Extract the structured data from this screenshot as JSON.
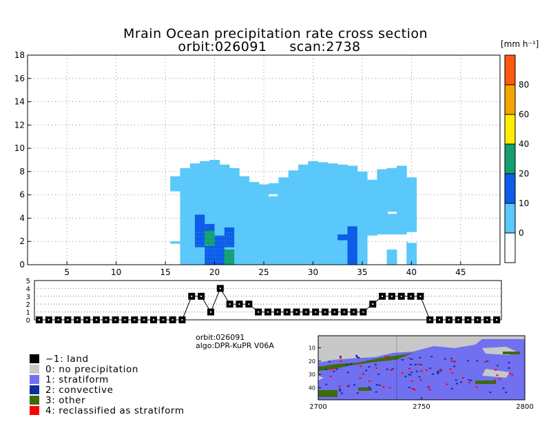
{
  "chart_data": [
    {
      "type": "heatmap",
      "title": "Mrain Ocean precipitation rate cross section",
      "subtitle_orbit": "orbit:026091",
      "subtitle_scan": "scan:2738",
      "colorbar_unit": "[mm h⁻¹]",
      "xlim": [
        1,
        49
      ],
      "ylim": [
        0,
        18
      ],
      "x_ticks": [
        5,
        10,
        15,
        20,
        25,
        30,
        35,
        40,
        45
      ],
      "y_ticks": [
        0,
        2,
        4,
        6,
        8,
        10,
        12,
        14,
        16,
        18
      ],
      "grid": true,
      "color_levels": [
        {
          "label": "0",
          "color": "#5ac8fa"
        },
        {
          "label": "10",
          "color": "#0e5de8"
        },
        {
          "label": "20",
          "color": "#12a070"
        },
        {
          "label": "40",
          "color": "#ffee00"
        },
        {
          "label": "60",
          "color": "#f5a500"
        },
        {
          "label": "80",
          "color": "#ff5a10"
        }
      ],
      "colorbar_bottom_color": "#ffffff",
      "no_rain_color": "#ffffff",
      "rain_columns": [
        {
          "x": 16,
          "bottom": 1.8,
          "top": 2.0
        },
        {
          "x": 16,
          "bottom": 6.3,
          "top": 7.6
        },
        {
          "x": 17,
          "bottom": 0.0,
          "top": 8.3
        },
        {
          "x": 18,
          "bottom": 0.0,
          "top": 8.7
        },
        {
          "x": 19,
          "bottom": 0.0,
          "top": 8.9
        },
        {
          "x": 20,
          "bottom": 0.0,
          "top": 9.0
        },
        {
          "x": 21,
          "bottom": 0.0,
          "top": 8.6
        },
        {
          "x": 22,
          "bottom": 0.0,
          "top": 8.3
        },
        {
          "x": 23,
          "bottom": 0.0,
          "top": 7.6
        },
        {
          "x": 24,
          "bottom": 0.0,
          "top": 7.1
        },
        {
          "x": 25,
          "bottom": 0.0,
          "top": 6.9
        },
        {
          "x": 26,
          "bottom": 0.0,
          "top": 7.0
        },
        {
          "x": 27,
          "bottom": 0.0,
          "top": 7.5
        },
        {
          "x": 28,
          "bottom": 0.0,
          "top": 8.1
        },
        {
          "x": 29,
          "bottom": 0.0,
          "top": 8.6
        },
        {
          "x": 30,
          "bottom": 0.0,
          "top": 8.9
        },
        {
          "x": 31,
          "bottom": 0.0,
          "top": 8.8
        },
        {
          "x": 32,
          "bottom": 0.0,
          "top": 8.7
        },
        {
          "x": 33,
          "bottom": 0.0,
          "top": 8.6
        },
        {
          "x": 34,
          "bottom": 0.0,
          "top": 8.5
        },
        {
          "x": 35,
          "bottom": 0.0,
          "top": 8.0
        },
        {
          "x": 36,
          "bottom": 2.5,
          "top": 7.3
        },
        {
          "x": 37,
          "bottom": 2.6,
          "top": 8.2
        },
        {
          "x": 38,
          "bottom": 2.6,
          "top": 8.3
        },
        {
          "x": 39,
          "bottom": 2.6,
          "top": 8.5
        },
        {
          "x": 40,
          "bottom": 2.8,
          "top": 7.5
        },
        {
          "x": 38,
          "bottom": 0.0,
          "top": 1.3
        },
        {
          "x": 40,
          "bottom": 0.0,
          "top": 2.0
        }
      ],
      "heavy_cells": [
        {
          "x": 18.5,
          "bottom": 1.5,
          "top": 4.3,
          "level": 1
        },
        {
          "x": 19.5,
          "bottom": 0.0,
          "top": 3.5,
          "level": 1
        },
        {
          "x": 20.5,
          "bottom": 0.0,
          "top": 2.5,
          "level": 1
        },
        {
          "x": 21.5,
          "bottom": 1.5,
          "top": 3.2,
          "level": 1
        },
        {
          "x": 34.0,
          "bottom": 0.0,
          "top": 3.3,
          "level": 1
        },
        {
          "x": 33.0,
          "bottom": 2.1,
          "top": 2.6,
          "level": 1
        },
        {
          "x": 19.5,
          "bottom": 1.6,
          "top": 2.9,
          "level": 2
        },
        {
          "x": 21.5,
          "bottom": 0.0,
          "top": 1.3,
          "level": 2
        }
      ]
    },
    {
      "type": "line",
      "ylim": [
        0,
        5
      ],
      "y_ticks": [
        0,
        1,
        2,
        3,
        4,
        5
      ],
      "xlim": [
        1,
        49
      ],
      "x": [
        1,
        2,
        3,
        4,
        5,
        6,
        7,
        8,
        9,
        10,
        11,
        12,
        13,
        14,
        15,
        16,
        17,
        18,
        19,
        20,
        21,
        22,
        23,
        24,
        25,
        26,
        27,
        28,
        29,
        30,
        31,
        32,
        33,
        34,
        35,
        36,
        37,
        38,
        39,
        40,
        41,
        42,
        43,
        44,
        45,
        46,
        47,
        48,
        49
      ],
      "values": [
        0,
        0,
        0,
        0,
        0,
        0,
        0,
        0,
        0,
        0,
        0,
        0,
        0,
        0,
        0,
        0,
        3,
        3,
        1,
        4,
        2,
        2,
        2,
        1,
        1,
        1,
        1,
        1,
        1,
        1,
        1,
        1,
        1,
        1,
        1,
        2,
        3,
        3,
        3,
        3,
        3,
        0,
        0,
        0,
        0,
        0,
        0,
        0,
        0
      ]
    },
    {
      "type": "heatmap",
      "x_ticks": [
        2700,
        2750,
        2800
      ],
      "y_ticks": [
        10,
        20,
        30,
        40
      ],
      "xlim": [
        2700,
        2800
      ],
      "ylim": [
        1,
        49
      ]
    }
  ],
  "info": {
    "orbit": "orbit:026091",
    "algo": "algo:DPR-KuPR V06A"
  },
  "legend": [
    {
      "label": "−1: land",
      "color": "#000000"
    },
    {
      "label": "0: no precipitation",
      "color": "#c8c8c8"
    },
    {
      "label": "1: stratiform",
      "color": "#7070f0"
    },
    {
      "label": "2: convective",
      "color": "#0c2f9c"
    },
    {
      "label": "3: other",
      "color": "#3d6b0a"
    },
    {
      "label": "4: reclassified as stratiform",
      "color": "#ff0000"
    }
  ]
}
